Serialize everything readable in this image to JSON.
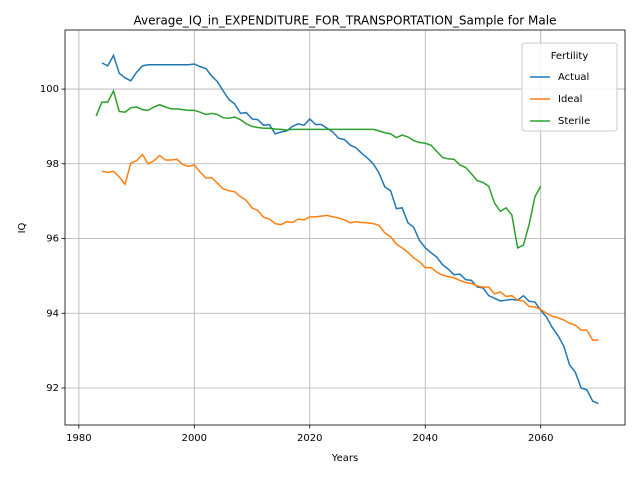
{
  "chart_data": {
    "type": "line",
    "title": "Average_IQ_in_EXPENDITURE_FOR_TRANSPORTATION_Sample for Male",
    "xlabel": "Years",
    "ylabel": "IQ",
    "x": [
      1983,
      1984,
      1985,
      1986,
      1987,
      1988,
      1989,
      1990,
      1991,
      1992,
      1993,
      1994,
      1995,
      1996,
      1997,
      1998,
      1999,
      2000,
      2001,
      2002,
      2003,
      2004,
      2005,
      2006,
      2007,
      2008,
      2009,
      2010,
      2011,
      2012,
      2013,
      2014,
      2015,
      2016,
      2017,
      2018,
      2019,
      2020,
      2021,
      2022,
      2023,
      2024,
      2025,
      2026,
      2027,
      2028,
      2029,
      2030,
      2031,
      2032,
      2033,
      2034,
      2035,
      2036,
      2037,
      2038,
      2039,
      2040,
      2041,
      2042,
      2043,
      2044,
      2045,
      2046,
      2047,
      2048,
      2049,
      2050,
      2051,
      2052,
      2053,
      2054,
      2055,
      2056,
      2057,
      2058,
      2059,
      2060,
      2061,
      2062,
      2063,
      2064,
      2065,
      2066,
      2067,
      2068,
      2069,
      2070
    ],
    "series": [
      {
        "name": "Actual",
        "color": "#1f77b4",
        "values": [
          null,
          100.7,
          100.62,
          100.9,
          100.42,
          100.3,
          100.22,
          100.45,
          100.62,
          100.65,
          100.65,
          100.65,
          100.65,
          100.65,
          100.65,
          100.65,
          100.65,
          100.67,
          100.6,
          100.55,
          100.35,
          100.2,
          99.95,
          99.72,
          99.6,
          99.35,
          99.37,
          99.2,
          99.18,
          99.03,
          99.05,
          98.8,
          98.85,
          98.88,
          99.0,
          99.07,
          99.03,
          99.2,
          99.05,
          99.05,
          98.95,
          98.85,
          98.68,
          98.65,
          98.5,
          98.43,
          98.28,
          98.15,
          98.0,
          97.75,
          97.38,
          97.28,
          96.8,
          96.82,
          96.42,
          96.3,
          95.95,
          95.75,
          95.62,
          95.5,
          95.3,
          95.18,
          95.03,
          95.05,
          94.9,
          94.88,
          94.7,
          94.68,
          94.47,
          94.4,
          94.33,
          94.35,
          94.37,
          94.35,
          94.47,
          94.32,
          94.3,
          94.08,
          93.9,
          93.62,
          93.4,
          93.12,
          92.62,
          92.42,
          92.0,
          91.95,
          91.65,
          91.58
        ]
      },
      {
        "name": "Ideal",
        "color": "#ff7f0e",
        "values": [
          null,
          97.8,
          97.77,
          97.8,
          97.65,
          97.45,
          98.02,
          98.08,
          98.25,
          98.0,
          98.08,
          98.22,
          98.1,
          98.1,
          98.12,
          97.98,
          97.93,
          97.97,
          97.78,
          97.62,
          97.63,
          97.48,
          97.33,
          97.28,
          97.25,
          97.12,
          97.02,
          96.82,
          96.75,
          96.57,
          96.52,
          96.4,
          96.37,
          96.45,
          96.43,
          96.52,
          96.5,
          96.58,
          96.58,
          96.6,
          96.62,
          96.58,
          96.55,
          96.5,
          96.42,
          96.45,
          96.43,
          96.42,
          96.4,
          96.35,
          96.15,
          96.05,
          95.85,
          95.75,
          95.63,
          95.48,
          95.38,
          95.22,
          95.22,
          95.1,
          95.02,
          94.98,
          94.95,
          94.88,
          94.82,
          94.8,
          94.73,
          94.7,
          94.7,
          94.52,
          94.57,
          94.45,
          94.47,
          94.35,
          94.33,
          94.18,
          94.17,
          94.1,
          94.0,
          93.92,
          93.88,
          93.82,
          93.73,
          93.68,
          93.55,
          93.55,
          93.28,
          93.28
        ]
      },
      {
        "name": "Sterile",
        "color": "#2ca02c",
        "values": [
          99.28,
          99.65,
          99.65,
          99.95,
          99.4,
          99.38,
          99.5,
          99.52,
          99.45,
          99.43,
          99.52,
          99.58,
          99.52,
          99.47,
          99.47,
          99.45,
          99.43,
          99.43,
          99.38,
          99.32,
          99.35,
          99.32,
          99.23,
          99.22,
          99.25,
          99.18,
          99.07,
          99.0,
          98.97,
          98.95,
          98.95,
          98.93,
          98.92,
          98.9,
          98.92,
          98.92,
          98.92,
          98.92,
          98.92,
          98.92,
          98.92,
          98.92,
          98.92,
          98.92,
          98.92,
          98.92,
          98.92,
          98.92,
          98.92,
          98.88,
          98.83,
          98.8,
          98.7,
          98.77,
          98.72,
          98.62,
          98.57,
          98.55,
          98.5,
          98.33,
          98.17,
          98.13,
          98.12,
          97.97,
          97.9,
          97.73,
          97.55,
          97.5,
          97.4,
          96.95,
          96.73,
          96.82,
          96.63,
          95.75,
          95.82,
          96.38,
          97.12,
          97.4,
          null,
          null,
          null,
          null,
          null,
          null,
          null,
          null,
          null,
          null
        ]
      }
    ],
    "xlim": [
      1977.6,
      2074.6
    ],
    "xticks": [
      1980,
      2000,
      2020,
      2040,
      2060
    ],
    "ylim": [
      91.01,
      101.58
    ],
    "yticks": [
      92,
      94,
      96,
      98,
      100
    ],
    "grid": true,
    "legend_title": "Fertility",
    "legend_loc": "upper right"
  }
}
